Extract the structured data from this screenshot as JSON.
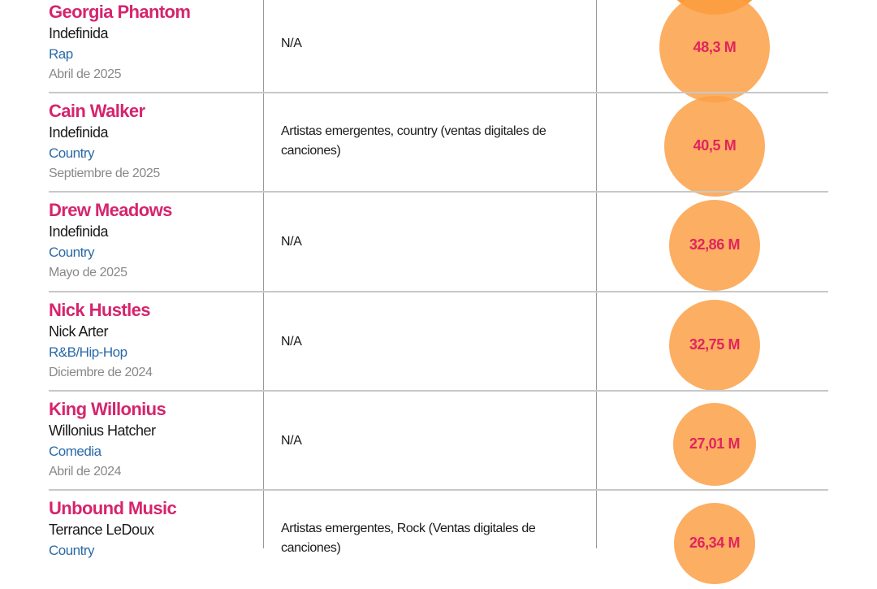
{
  "colors": {
    "name": "#d6246e",
    "genre": "#2a6aa8",
    "bubble": "#fca046",
    "value": "#e0245e"
  },
  "rows": [
    {
      "name": "Georgia Phantom",
      "sub": "Indefinida",
      "genre": "Rap",
      "date": "Abril de 2025",
      "category": "N/A",
      "value": 48.3,
      "value_label": "48,3 M"
    },
    {
      "name": "Cain Walker",
      "sub": "Indefinida",
      "genre": "Country",
      "date": "Septiembre de 2025",
      "category": "Artistas emergentes, country (ventas digitales de canciones)",
      "value": 40.5,
      "value_label": "40,5 M"
    },
    {
      "name": "Drew Meadows",
      "sub": "Indefinida",
      "genre": "Country",
      "date": "Mayo de 2025",
      "category": "N/A",
      "value": 32.86,
      "value_label": "32,86 M"
    },
    {
      "name": "Nick Hustles",
      "sub": "Nick Arter",
      "genre": "R&B/Hip-Hop",
      "date": "Diciembre de 2024",
      "category": "N/A",
      "value": 32.75,
      "value_label": "32,75 M"
    },
    {
      "name": "King Willonius",
      "sub": "Willonius Hatcher",
      "genre": "Comedia",
      "date": "Abril de 2024",
      "category": "N/A",
      "value": 27.01,
      "value_label": "27,01 M"
    },
    {
      "name": "Unbound Music",
      "sub": "Terrance LeDoux",
      "genre": "Country",
      "date": "",
      "category": "Artistas emergentes, Rock (Ventas digitales de canciones)",
      "value": 26.34,
      "value_label": "26,34 M"
    }
  ]
}
